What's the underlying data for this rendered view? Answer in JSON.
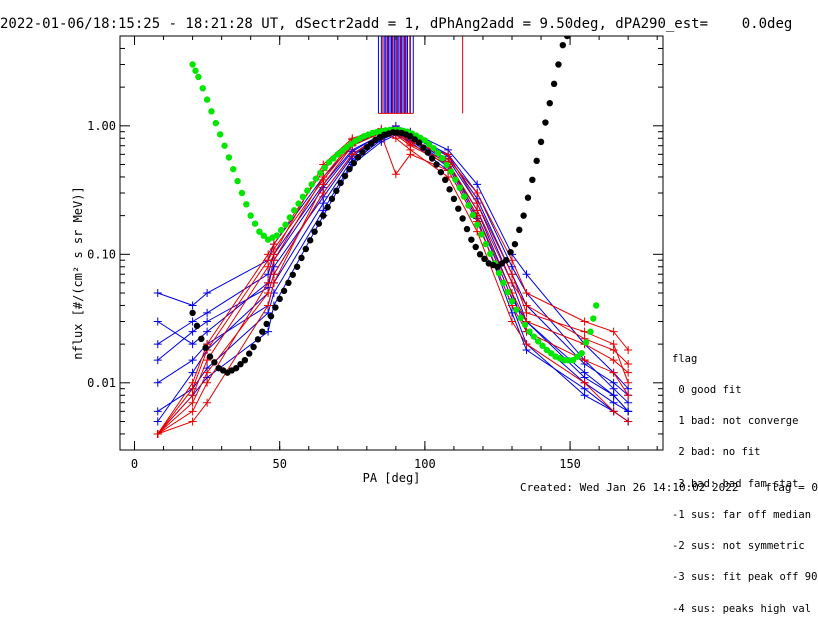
{
  "title": "2022-01-06/18:15:25 - 18:21:28 UT, dSectr2add = 1, dPhAng2add = 9.50deg, dPA290_est=    0.0deg",
  "footer": "Created: Wed Jan 26 14:10:02 2022    flag = 0",
  "legend": {
    "title": "flag",
    "items": [
      " 0 good fit",
      " 1 bad: not converge",
      " 2 bad: no fit",
      " 3 bad: bad fam stat",
      "-1 sus: far off median",
      "-2 sus: not symmetric",
      "-3 sus: fit peak off 90",
      "-4 sus: peaks high val"
    ]
  },
  "colors": {
    "red": "#e60000",
    "blue": "#0000e6",
    "green": "#00e600",
    "black": "#000000",
    "axis": "#000000"
  },
  "chart_data": {
    "type": "line",
    "xlabel": "PA [deg]",
    "ylabel": "nflux [#/(cm² s sr MeV)]",
    "xlim": [
      -5,
      182
    ],
    "ylim": [
      0.003,
      5.0
    ],
    "yscale": "log",
    "xticks": [
      "0",
      "50",
      "100",
      "150"
    ],
    "yticks": [
      "0.01",
      "0.10",
      "1.00"
    ],
    "sample_pa": [
      8,
      20,
      25,
      46,
      48,
      65,
      75,
      85,
      90,
      95,
      108,
      118,
      130,
      135,
      155,
      165,
      170
    ],
    "series": [
      {
        "color": "blue",
        "values": [
          0.005,
          0.012,
          0.018,
          0.05,
          0.07,
          0.3,
          0.6,
          0.8,
          0.9,
          0.8,
          0.55,
          0.25,
          0.06,
          0.03,
          0.012,
          0.008,
          0.006
        ]
      },
      {
        "color": "blue",
        "values": [
          0.02,
          0.03,
          0.035,
          0.07,
          0.1,
          0.35,
          0.65,
          0.85,
          0.95,
          0.85,
          0.6,
          0.3,
          0.08,
          0.05,
          0.015,
          0.009,
          0.007
        ]
      },
      {
        "color": "blue",
        "values": [
          0.004,
          0.008,
          0.011,
          0.025,
          0.04,
          0.2,
          0.5,
          0.75,
          0.85,
          0.75,
          0.45,
          0.18,
          0.04,
          0.02,
          0.008,
          0.006,
          0.005
        ]
      },
      {
        "color": "blue",
        "values": [
          0.05,
          0.04,
          0.05,
          0.09,
          0.12,
          0.4,
          0.7,
          0.9,
          1.0,
          0.9,
          0.65,
          0.35,
          0.1,
          0.07,
          0.02,
          0.012,
          0.009
        ]
      },
      {
        "color": "blue",
        "values": [
          0.01,
          0.015,
          0.02,
          0.04,
          0.06,
          0.25,
          0.55,
          0.8,
          0.88,
          0.8,
          0.5,
          0.22,
          0.05,
          0.025,
          0.01,
          0.007,
          0.006
        ]
      },
      {
        "color": "blue",
        "values": [
          0.03,
          0.02,
          0.025,
          0.06,
          0.08,
          0.28,
          0.58,
          0.82,
          0.92,
          0.82,
          0.52,
          0.2,
          0.045,
          0.03,
          0.011,
          0.008,
          0.006
        ]
      },
      {
        "color": "blue",
        "values": [
          0.006,
          0.009,
          0.013,
          0.035,
          0.05,
          0.22,
          0.52,
          0.78,
          0.87,
          0.77,
          0.48,
          0.19,
          0.035,
          0.018,
          0.009,
          0.006,
          0.005
        ]
      },
      {
        "color": "blue",
        "values": [
          0.015,
          0.025,
          0.03,
          0.055,
          0.09,
          0.33,
          0.63,
          0.86,
          0.94,
          0.84,
          0.58,
          0.27,
          0.07,
          0.04,
          0.014,
          0.01,
          0.008
        ]
      },
      {
        "color": "red",
        "values": [
          0.004,
          0.006,
          0.01,
          0.06,
          0.09,
          0.4,
          0.75,
          0.9,
          0.85,
          0.7,
          0.5,
          0.2,
          0.05,
          0.03,
          0.02,
          0.015,
          0.012
        ]
      },
      {
        "color": "red",
        "values": [
          0.004,
          0.008,
          0.015,
          0.08,
          0.1,
          0.5,
          0.8,
          0.95,
          0.9,
          0.75,
          0.6,
          0.25,
          0.07,
          0.035,
          0.025,
          0.02,
          0.01
        ]
      },
      {
        "color": "red",
        "values": [
          0.004,
          0.005,
          0.007,
          0.04,
          0.06,
          0.35,
          0.7,
          0.88,
          0.8,
          0.65,
          0.4,
          0.15,
          0.03,
          0.02,
          0.01,
          0.006,
          0.005
        ]
      },
      {
        "color": "red",
        "values": [
          0.004,
          0.01,
          0.02,
          0.1,
          0.12,
          0.45,
          0.78,
          0.92,
          0.95,
          0.8,
          0.55,
          0.3,
          0.09,
          0.05,
          0.03,
          0.025,
          0.018
        ]
      },
      {
        "color": "red",
        "values": [
          0.004,
          0.007,
          0.012,
          0.05,
          0.07,
          0.3,
          0.6,
          0.85,
          0.42,
          0.6,
          0.45,
          0.18,
          0.04,
          0.025,
          0.015,
          0.012,
          0.008
        ]
      },
      {
        "color": "red",
        "values": [
          0.004,
          0.009,
          0.018,
          0.09,
          0.11,
          0.38,
          0.72,
          0.9,
          0.88,
          0.72,
          0.52,
          0.22,
          0.06,
          0.04,
          0.022,
          0.018,
          0.014
        ]
      }
    ],
    "fit_high_pa": {
      "name": "green",
      "x": [
        20,
        22,
        25,
        28,
        31,
        34,
        37,
        40,
        43,
        46,
        49,
        52,
        55,
        58,
        61,
        64,
        67,
        70,
        73,
        76,
        79,
        82,
        85,
        88,
        91,
        94,
        97,
        100,
        103,
        106,
        109,
        112,
        115,
        118,
        121,
        124,
        127,
        130,
        133,
        136,
        139,
        142,
        145,
        148,
        151,
        154,
        157,
        159
      ],
      "y": [
        3.0,
        2.4,
        1.6,
        1.05,
        0.7,
        0.46,
        0.3,
        0.2,
        0.15,
        0.13,
        0.14,
        0.17,
        0.22,
        0.28,
        0.35,
        0.43,
        0.52,
        0.6,
        0.68,
        0.76,
        0.83,
        0.88,
        0.91,
        0.93,
        0.93,
        0.9,
        0.84,
        0.77,
        0.67,
        0.56,
        0.44,
        0.33,
        0.24,
        0.17,
        0.12,
        0.085,
        0.06,
        0.043,
        0.032,
        0.025,
        0.021,
        0.018,
        0.016,
        0.015,
        0.015,
        0.017,
        0.025,
        0.04
      ]
    },
    "fit_low_pa": {
      "name": "black",
      "x": [
        20,
        23,
        26,
        29,
        32,
        35,
        38,
        41,
        44,
        47,
        50,
        53,
        56,
        59,
        62,
        65,
        68,
        71,
        74,
        77,
        80,
        83,
        86,
        89,
        92,
        95,
        98,
        101,
        104,
        107,
        110,
        113,
        116,
        119,
        122,
        125,
        128,
        131,
        134,
        137,
        140,
        143,
        146,
        149
      ],
      "y": [
        0.035,
        0.022,
        0.016,
        0.013,
        0.012,
        0.013,
        0.015,
        0.019,
        0.025,
        0.033,
        0.045,
        0.06,
        0.08,
        0.11,
        0.15,
        0.2,
        0.27,
        0.36,
        0.46,
        0.57,
        0.68,
        0.78,
        0.85,
        0.89,
        0.88,
        0.83,
        0.74,
        0.62,
        0.5,
        0.38,
        0.27,
        0.19,
        0.13,
        0.1,
        0.085,
        0.08,
        0.09,
        0.12,
        0.2,
        0.38,
        0.75,
        1.5,
        3.0,
        6.0
      ]
    },
    "spikes_90": {
      "blue_x": [
        84,
        85,
        86,
        86.5,
        87,
        87.5,
        88,
        88.5,
        89,
        89.5,
        90,
        90.5,
        91,
        91.5,
        92,
        92.5,
        93,
        93.5,
        94,
        95,
        96
      ],
      "red_x": [
        85.5,
        87.2,
        88.8,
        90.2,
        91.8,
        93.2,
        94.8
      ],
      "red_extra_x": [
        113
      ]
    }
  }
}
